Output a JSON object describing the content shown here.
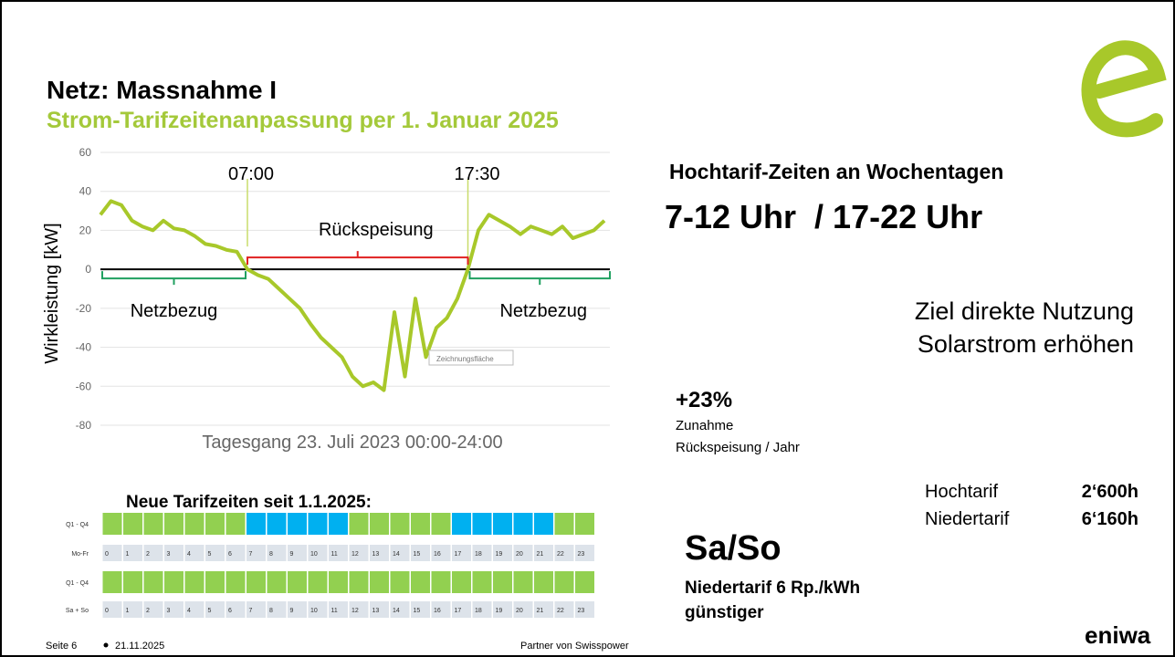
{
  "header": {
    "title": "Netz: Massnahme I",
    "subtitle": "Strom-Tarifzeitenanpassung per 1. Januar 2025"
  },
  "chart_data": {
    "type": "line",
    "title": "Tagesgang 23. Juli 2023 00:00-24:00",
    "y_label": "Wirkleistung [kW]",
    "x": [
      0,
      0.5,
      1,
      1.5,
      2,
      2.5,
      3,
      3.5,
      4,
      4.5,
      5,
      5.5,
      6,
      6.5,
      7,
      7.5,
      8,
      8.5,
      9,
      9.5,
      10,
      10.5,
      11,
      11.5,
      12,
      12.5,
      13,
      13.5,
      14,
      14.5,
      15,
      15.5,
      16,
      16.5,
      17,
      17.5,
      18,
      18.5,
      19,
      19.5,
      20,
      20.5,
      21,
      21.5,
      22,
      22.5,
      23,
      23.5,
      24
    ],
    "values": [
      28,
      35,
      33,
      25,
      22,
      20,
      25,
      21,
      20,
      17,
      13,
      12,
      10,
      9,
      0,
      -3,
      -5,
      -10,
      -15,
      -20,
      -28,
      -35,
      -40,
      -45,
      -55,
      -60,
      -58,
      -62,
      -22,
      -55,
      -15,
      -45,
      -30,
      -25,
      -15,
      0,
      20,
      28,
      25,
      22,
      18,
      22,
      20,
      18,
      22,
      16,
      18,
      20,
      25
    ],
    "color": "#a8c82a",
    "xlim": [
      0,
      24
    ],
    "ylim": [
      -80,
      60
    ],
    "yticks": [
      -80,
      -60,
      -40,
      -20,
      0,
      20,
      40,
      60
    ],
    "grid": true,
    "markers": [
      {
        "label": "07:00",
        "x": 7
      },
      {
        "label": "17:30",
        "x": 17.5
      }
    ],
    "annotations": [
      "Rückspeisung",
      "Netzbezug",
      "Netzbezug",
      "Zeichnungsfläche"
    ]
  },
  "tariff": {
    "title": "Neue Tarifzeiten seit 1.1.2025:",
    "rows": [
      {
        "label": "Q1 - Q4",
        "high": [
          7,
          8,
          9,
          10,
          11,
          17,
          18,
          19,
          20,
          21
        ]
      },
      {
        "label": "Mo-Fr"
      },
      {
        "label": "Q1 - Q4",
        "high": []
      },
      {
        "label": "Sa + So"
      }
    ],
    "hours": [
      0,
      1,
      2,
      3,
      4,
      5,
      6,
      7,
      8,
      9,
      10,
      11,
      12,
      13,
      14,
      15,
      16,
      17,
      18,
      19,
      20,
      21,
      22,
      23
    ],
    "high_color": "#00b0f0",
    "low_color": "#92d050"
  },
  "info": {
    "heading": "Hochtarif-Zeiten an Wochentagen",
    "hours": "7-12 Uhr  / 17-22 Uhr",
    "goal": [
      "Ziel direkte Nutzung",
      "Solarstrom erhöhen"
    ],
    "increase": {
      "value": "+23%",
      "label": [
        "Zunahme",
        "Rückspeisung / Jahr"
      ]
    },
    "totals": [
      {
        "name": "Hochtarif",
        "value": "2‘600h"
      },
      {
        "name": "Niedertarif",
        "value": "6‘160h"
      }
    ],
    "weekend": {
      "title": "Sa/So",
      "text": [
        "Niedertarif 6 Rp./kWh",
        "günstiger"
      ]
    }
  },
  "footer": {
    "page": "Seite 6",
    "date": "21.11.2025",
    "partner": "Partner von Swisspower",
    "brand": "eniwa"
  }
}
